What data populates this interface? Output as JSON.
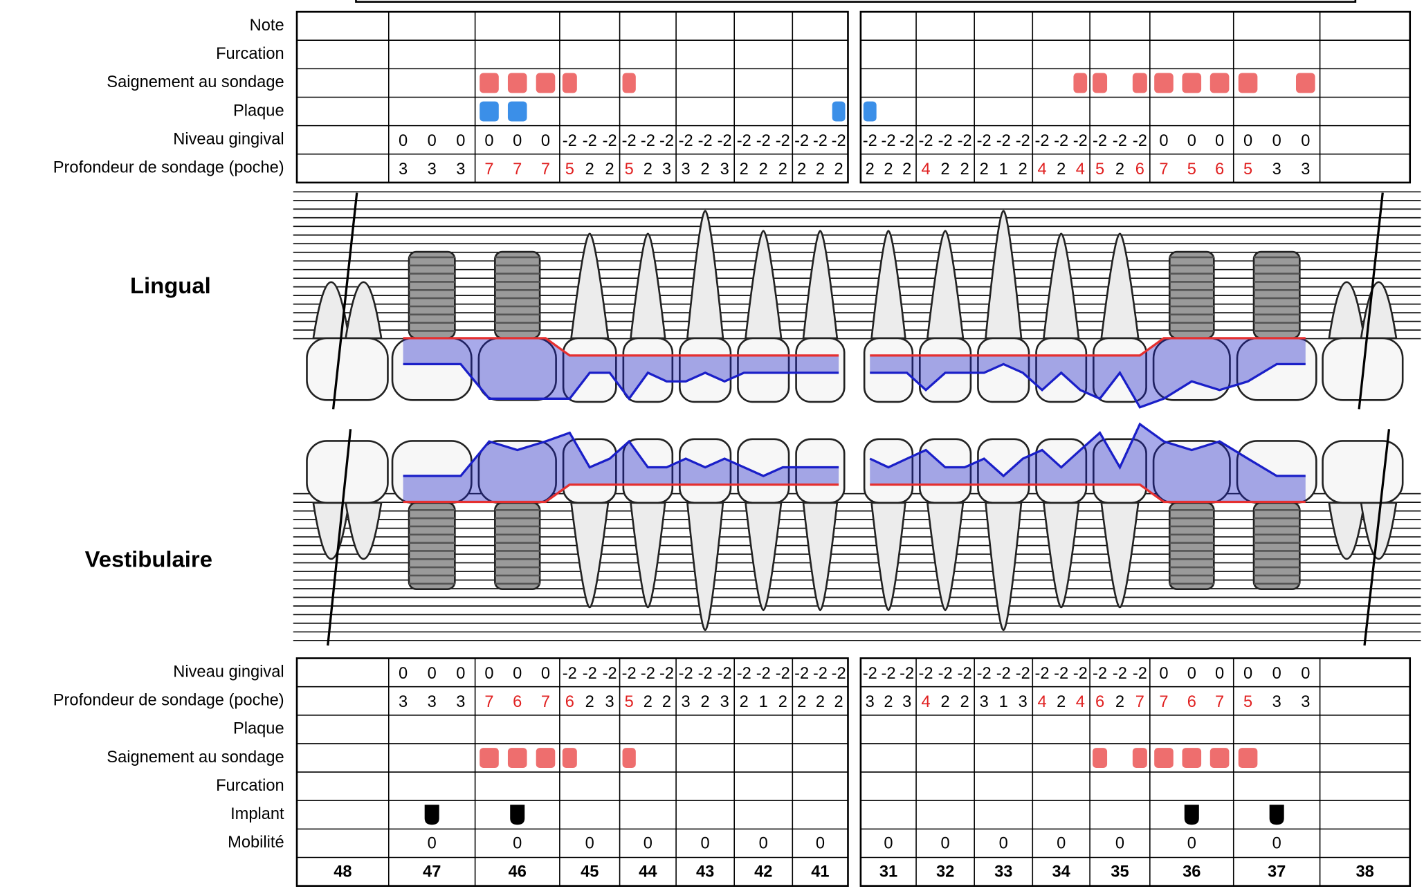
{
  "teeth": [
    48,
    47,
    46,
    45,
    44,
    43,
    42,
    41,
    31,
    32,
    33,
    34,
    35,
    36,
    37,
    38
  ],
  "highlight_from": 4,
  "highlight_color": "#e02020",
  "bleeding_color": "#ee6e6e",
  "plaque_color": "#3b8fe8",
  "pocket_color": "#1a1fc8",
  "margin_color": "#e53030",
  "lingual": {
    "label": "Lingual",
    "note_label": "Note",
    "furcation_label": "Furcation",
    "bleeding_label": "Saignement  au sondage",
    "plaque_label": "Plaque",
    "gingival_label": "Niveau gingival",
    "depth_label": "Profondeur de sondage (poche)",
    "bleeding": [
      null,
      [
        false,
        false,
        false
      ],
      [
        true,
        true,
        true
      ],
      [
        true,
        false,
        false
      ],
      [
        true,
        false,
        false
      ],
      [
        false,
        false,
        false
      ],
      [
        false,
        false,
        false
      ],
      [
        false,
        false,
        false
      ],
      [
        false,
        false,
        false
      ],
      [
        false,
        false,
        false
      ],
      [
        false,
        false,
        false
      ],
      [
        false,
        false,
        true
      ],
      [
        true,
        false,
        true
      ],
      [
        true,
        true,
        true
      ],
      [
        true,
        false,
        true
      ],
      null
    ],
    "plaque": [
      null,
      [
        false,
        false,
        false
      ],
      [
        true,
        true,
        false
      ],
      [
        false,
        false,
        false
      ],
      [
        false,
        false,
        false
      ],
      [
        false,
        false,
        false
      ],
      [
        false,
        false,
        false
      ],
      [
        false,
        false,
        true
      ],
      [
        true,
        false,
        false
      ],
      [
        false,
        false,
        false
      ],
      [
        false,
        false,
        false
      ],
      [
        false,
        false,
        false
      ],
      [
        false,
        false,
        false
      ],
      [
        false,
        false,
        false
      ],
      [
        false,
        false,
        false
      ],
      null
    ],
    "gingival": [
      null,
      [
        0,
        0,
        0
      ],
      [
        0,
        0,
        0
      ],
      [
        -2,
        -2,
        -2
      ],
      [
        -2,
        -2,
        -2
      ],
      [
        -2,
        -2,
        -2
      ],
      [
        -2,
        -2,
        -2
      ],
      [
        -2,
        -2,
        -2
      ],
      [
        -2,
        -2,
        -2
      ],
      [
        -2,
        -2,
        -2
      ],
      [
        -2,
        -2,
        -2
      ],
      [
        -2,
        -2,
        -2
      ],
      [
        -2,
        -2,
        -2
      ],
      [
        0,
        0,
        0
      ],
      [
        0,
        0,
        0
      ],
      null
    ],
    "depth": [
      null,
      [
        3,
        3,
        3
      ],
      [
        7,
        7,
        7
      ],
      [
        5,
        2,
        2
      ],
      [
        5,
        2,
        3
      ],
      [
        3,
        2,
        3
      ],
      [
        2,
        2,
        2
      ],
      [
        2,
        2,
        2
      ],
      [
        2,
        2,
        2
      ],
      [
        4,
        2,
        2
      ],
      [
        2,
        1,
        2
      ],
      [
        4,
        2,
        4
      ],
      [
        5,
        2,
        6
      ],
      [
        7,
        5,
        6
      ],
      [
        5,
        3,
        3
      ],
      null
    ]
  },
  "vestibular": {
    "label": "Vestibulaire",
    "gingival_label": "Niveau gingival",
    "depth_label": "Profondeur de sondage (poche)",
    "plaque_label": "Plaque",
    "bleeding_label": "Saignement  au sondage",
    "furcation_label": "Furcation",
    "implant_label": "Implant",
    "mobility_label": "Mobilité",
    "gingival": [
      null,
      [
        0,
        0,
        0
      ],
      [
        0,
        0,
        0
      ],
      [
        -2,
        -2,
        -2
      ],
      [
        -2,
        -2,
        -2
      ],
      [
        -2,
        -2,
        -2
      ],
      [
        -2,
        -2,
        -2
      ],
      [
        -2,
        -2,
        -2
      ],
      [
        -2,
        -2,
        -2
      ],
      [
        -2,
        -2,
        -2
      ],
      [
        -2,
        -2,
        -2
      ],
      [
        -2,
        -2,
        -2
      ],
      [
        -2,
        -2,
        -2
      ],
      [
        0,
        0,
        0
      ],
      [
        0,
        0,
        0
      ],
      null
    ],
    "depth": [
      null,
      [
        3,
        3,
        3
      ],
      [
        7,
        6,
        7
      ],
      [
        6,
        2,
        3
      ],
      [
        5,
        2,
        2
      ],
      [
        3,
        2,
        3
      ],
      [
        2,
        1,
        2
      ],
      [
        2,
        2,
        2
      ],
      [
        3,
        2,
        3
      ],
      [
        4,
        2,
        2
      ],
      [
        3,
        1,
        3
      ],
      [
        4,
        2,
        4
      ],
      [
        6,
        2,
        7
      ],
      [
        7,
        6,
        7
      ],
      [
        5,
        3,
        3
      ],
      null
    ],
    "plaque": [
      null,
      [
        false,
        false,
        false
      ],
      [
        false,
        false,
        false
      ],
      [
        false,
        false,
        false
      ],
      [
        false,
        false,
        false
      ],
      [
        false,
        false,
        false
      ],
      [
        false,
        false,
        false
      ],
      [
        false,
        false,
        false
      ],
      [
        false,
        false,
        false
      ],
      [
        false,
        false,
        false
      ],
      [
        false,
        false,
        false
      ],
      [
        false,
        false,
        false
      ],
      [
        false,
        false,
        false
      ],
      [
        false,
        false,
        false
      ],
      [
        false,
        false,
        false
      ],
      null
    ],
    "bleeding": [
      null,
      [
        false,
        false,
        false
      ],
      [
        true,
        true,
        true
      ],
      [
        true,
        false,
        false
      ],
      [
        true,
        false,
        false
      ],
      [
        false,
        false,
        false
      ],
      [
        false,
        false,
        false
      ],
      [
        false,
        false,
        false
      ],
      [
        false,
        false,
        false
      ],
      [
        false,
        false,
        false
      ],
      [
        false,
        false,
        false
      ],
      [
        false,
        false,
        false
      ],
      [
        true,
        false,
        true
      ],
      [
        true,
        true,
        true
      ],
      [
        true,
        false,
        false
      ],
      null
    ],
    "implant": [
      false,
      true,
      true,
      false,
      false,
      false,
      false,
      false,
      false,
      false,
      false,
      false,
      false,
      true,
      true,
      false
    ],
    "mobility": [
      null,
      0,
      0,
      0,
      0,
      0,
      0,
      0,
      0,
      0,
      0,
      0,
      0,
      0,
      0,
      null
    ]
  }
}
